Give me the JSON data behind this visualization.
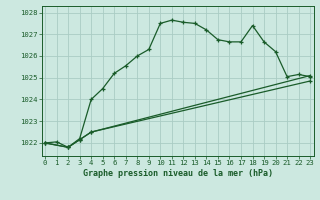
{
  "background_color": "#cce8e0",
  "grid_color": "#aaccC4",
  "line_color": "#1a5c2a",
  "title": "Graphe pression niveau de la mer (hPa)",
  "ylim": [
    1021.4,
    1028.3
  ],
  "yticks": [
    1022,
    1023,
    1024,
    1025,
    1026,
    1027,
    1028
  ],
  "xlim": [
    -0.3,
    23.3
  ],
  "xticks": [
    0,
    1,
    2,
    3,
    4,
    5,
    6,
    7,
    8,
    9,
    10,
    11,
    12,
    13,
    14,
    15,
    16,
    17,
    18,
    19,
    20,
    21,
    22,
    23
  ],
  "series": [
    {
      "x": [
        0,
        1,
        2,
        3,
        4,
        5,
        6,
        7,
        8,
        9,
        10,
        11,
        12,
        13,
        14,
        15,
        16,
        17,
        18,
        19,
        20,
        21,
        22,
        23
      ],
      "y": [
        1022.0,
        1022.05,
        1021.8,
        1022.2,
        1024.0,
        1024.5,
        1025.2,
        1025.55,
        1026.0,
        1026.3,
        1027.5,
        1027.65,
        1027.55,
        1027.5,
        1027.2,
        1026.75,
        1026.65,
        1026.65,
        1027.4,
        1026.65,
        1026.2,
        1025.05,
        1025.15,
        1025.05
      ],
      "marker": true
    },
    {
      "x": [
        0,
        2,
        3,
        4,
        23
      ],
      "y": [
        1022.0,
        1021.8,
        1022.15,
        1022.5,
        1025.1
      ],
      "marker": true
    },
    {
      "x": [
        0,
        2,
        3,
        4,
        23
      ],
      "y": [
        1022.0,
        1021.8,
        1022.15,
        1022.5,
        1024.85
      ],
      "marker": true
    }
  ],
  "tick_fontsize": 5.2,
  "title_fontsize": 6.0,
  "linewidth": 0.9,
  "marker_size": 3.5,
  "marker_ew": 0.9
}
